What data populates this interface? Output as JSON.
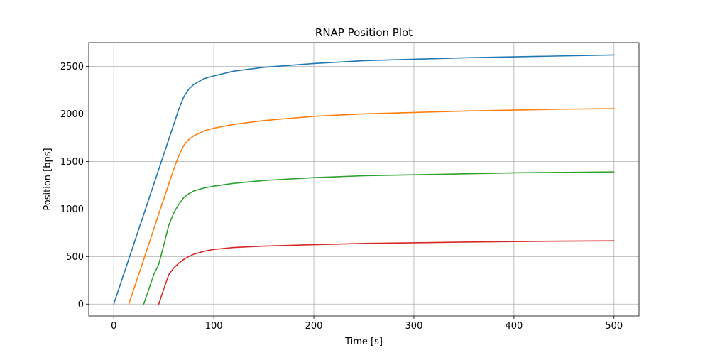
{
  "chart_data": {
    "type": "line",
    "title": "RNAP Position Plot",
    "xlabel": "Time [s]",
    "ylabel": "Position [bps]",
    "xlim": [
      -25,
      525
    ],
    "ylim": [
      -125,
      2750
    ],
    "xticks": [
      0,
      100,
      200,
      300,
      400,
      500
    ],
    "yticks": [
      0,
      500,
      1000,
      1500,
      2000,
      2500
    ],
    "grid": true,
    "series": [
      {
        "color": "#1f77b4",
        "x": [
          0,
          20,
          40,
          60,
          65,
          70,
          75,
          80,
          90,
          100,
          120,
          150,
          200,
          250,
          300,
          350,
          400,
          450,
          500
        ],
        "y": [
          0,
          630,
          1260,
          1890,
          2050,
          2180,
          2260,
          2310,
          2370,
          2400,
          2450,
          2490,
          2530,
          2560,
          2575,
          2590,
          2600,
          2610,
          2620
        ]
      },
      {
        "color": "#ff7f0e",
        "x": [
          15,
          30,
          45,
          60,
          65,
          70,
          75,
          80,
          90,
          100,
          120,
          150,
          200,
          250,
          300,
          350,
          400,
          450,
          500
        ],
        "y": [
          0,
          470,
          950,
          1420,
          1560,
          1670,
          1730,
          1770,
          1820,
          1850,
          1890,
          1930,
          1975,
          2000,
          2015,
          2030,
          2040,
          2050,
          2055
        ]
      },
      {
        "color": "#2ca02c",
        "x": [
          30,
          40,
          45,
          50,
          55,
          60,
          65,
          70,
          75,
          80,
          90,
          100,
          120,
          150,
          200,
          250,
          300,
          350,
          400,
          450,
          500
        ],
        "y": [
          0,
          310,
          420,
          620,
          830,
          960,
          1050,
          1120,
          1160,
          1190,
          1220,
          1240,
          1270,
          1300,
          1330,
          1350,
          1360,
          1370,
          1380,
          1385,
          1390
        ]
      },
      {
        "color": "#d62728",
        "x": [
          45,
          50,
          55,
          60,
          65,
          70,
          75,
          80,
          90,
          100,
          120,
          150,
          200,
          250,
          300,
          350,
          400,
          450,
          500
        ],
        "y": [
          0,
          160,
          310,
          380,
          430,
          470,
          500,
          525,
          555,
          575,
          595,
          610,
          625,
          638,
          645,
          652,
          658,
          662,
          665
        ]
      }
    ]
  }
}
